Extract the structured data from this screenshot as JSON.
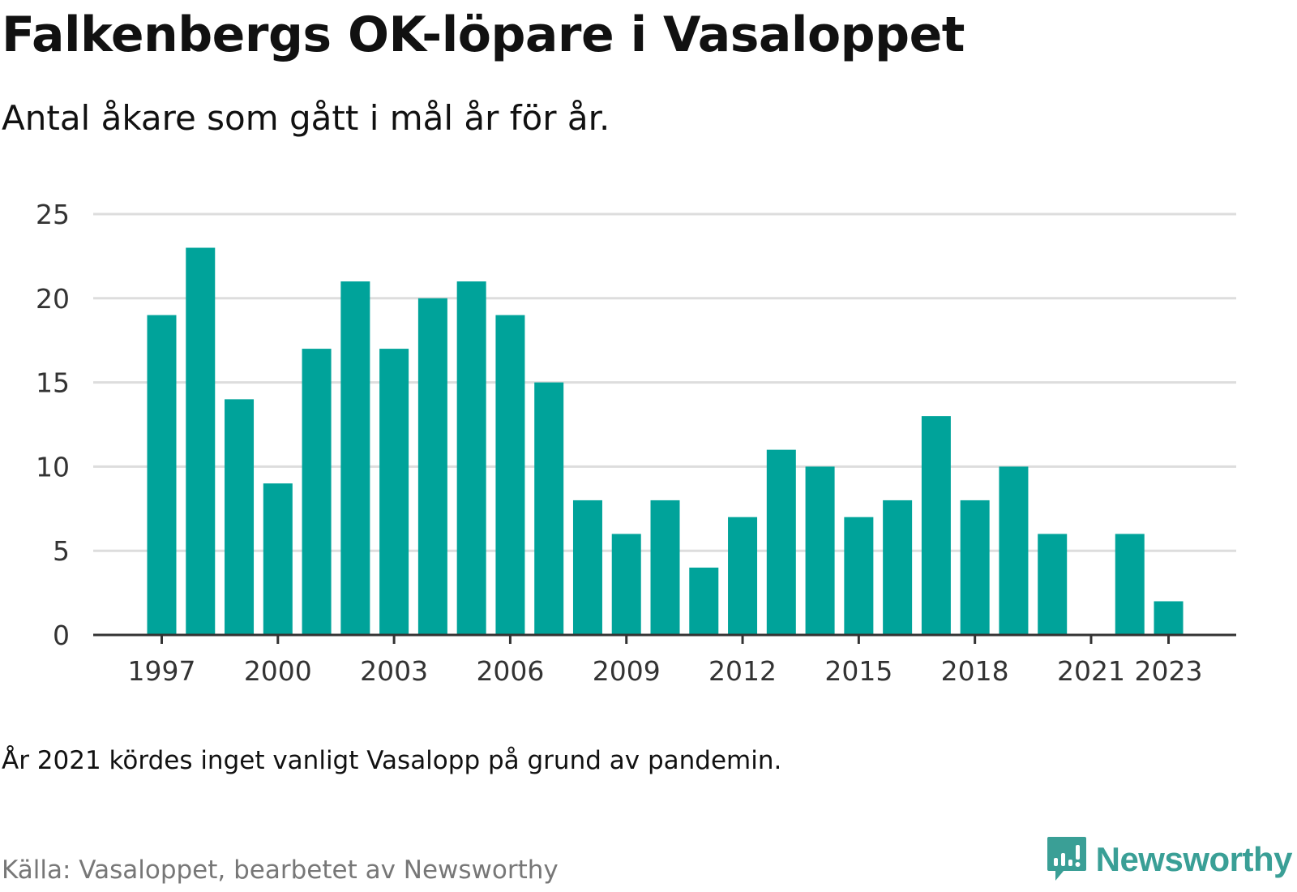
{
  "header": {
    "title": "Falkenbergs OK-löpare i Vasaloppet",
    "subtitle": "Antal åkare som gått i mål år för år."
  },
  "footer": {
    "note": "År 2021 kördes inget vanligt Vasalopp på grund av pandemin.",
    "source": "Källa: Vasaloppet, bearbetet av Newsworthy",
    "brand": "Newsworthy",
    "brand_icon": "newsworthy-logo-icon"
  },
  "colors": {
    "bar": "#00a39a",
    "grid": "#dddddd",
    "axis": "#333333",
    "brand": "#3a9f96"
  },
  "chart_data": {
    "type": "bar",
    "title": "Falkenbergs OK-löpare i Vasaloppet",
    "subtitle": "Antal åkare som gått i mål år för år.",
    "xlabel": "",
    "ylabel": "",
    "ylim": [
      0,
      25
    ],
    "yticks": [
      0,
      5,
      10,
      15,
      20,
      25
    ],
    "xtick_labels": [
      "1997",
      "2000",
      "2003",
      "2006",
      "2009",
      "2012",
      "2015",
      "2018",
      "2021",
      "2023"
    ],
    "grid": true,
    "legend": "none",
    "categories": [
      "1997",
      "1998",
      "1999",
      "2000",
      "2001",
      "2002",
      "2003",
      "2004",
      "2005",
      "2006",
      "2007",
      "2008",
      "2009",
      "2010",
      "2011",
      "2012",
      "2013",
      "2014",
      "2015",
      "2016",
      "2017",
      "2018",
      "2019",
      "2020",
      "2021",
      "2022",
      "2023"
    ],
    "values": [
      19,
      23,
      14,
      9,
      17,
      21,
      17,
      20,
      21,
      19,
      15,
      8,
      6,
      8,
      4,
      7,
      11,
      10,
      7,
      8,
      13,
      8,
      10,
      6,
      0,
      6,
      2
    ]
  }
}
